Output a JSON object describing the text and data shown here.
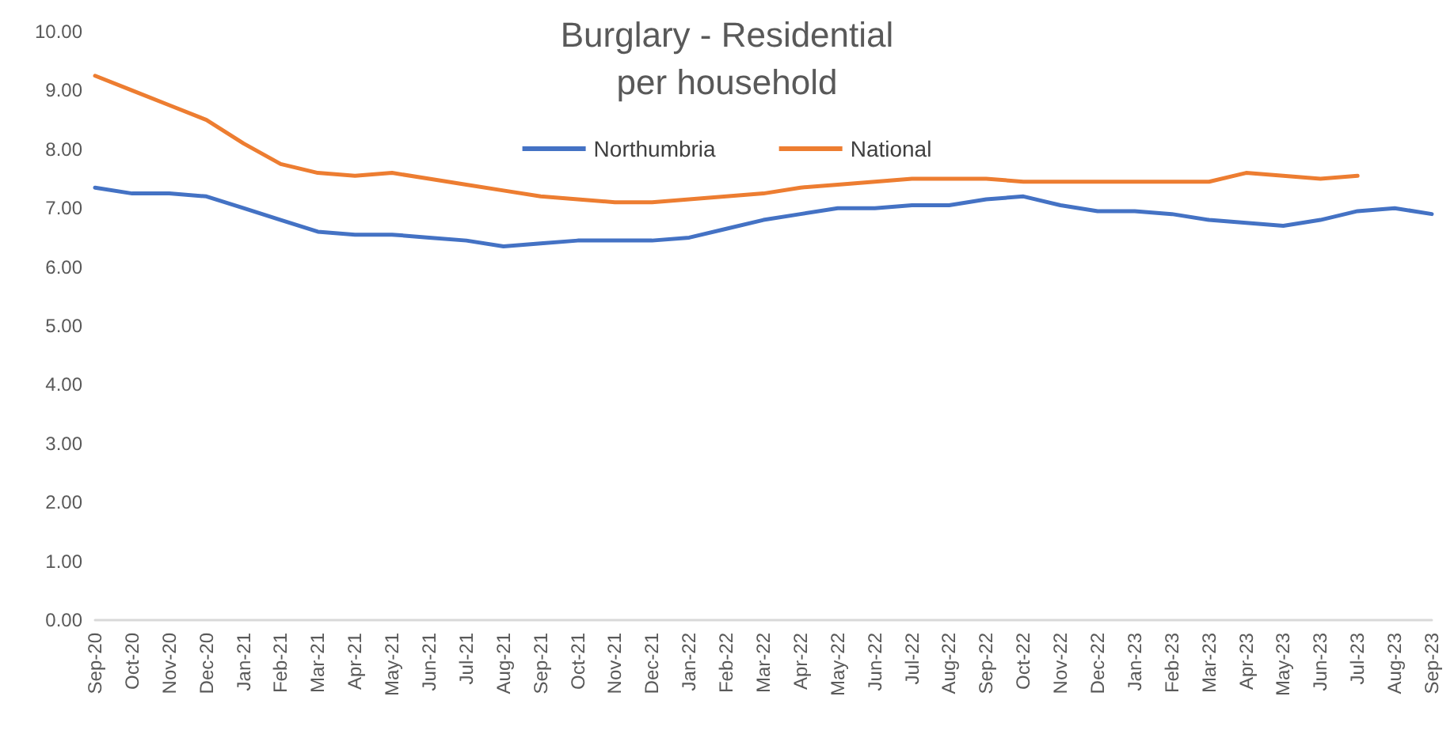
{
  "chart_data": {
    "type": "line",
    "title": "Burglary - Residential\nper household",
    "categories": [
      "Sep-20",
      "Oct-20",
      "Nov-20",
      "Dec-20",
      "Jan-21",
      "Feb-21",
      "Mar-21",
      "Apr-21",
      "May-21",
      "Jun-21",
      "Jul-21",
      "Aug-21",
      "Sep-21",
      "Oct-21",
      "Nov-21",
      "Dec-21",
      "Jan-22",
      "Feb-22",
      "Mar-22",
      "Apr-22",
      "May-22",
      "Jun-22",
      "Jul-22",
      "Aug-22",
      "Sep-22",
      "Oct-22",
      "Nov-22",
      "Dec-22",
      "Jan-23",
      "Feb-23",
      "Mar-23",
      "Apr-23",
      "May-23",
      "Jun-23",
      "Jul-23",
      "Aug-23",
      "Sep-23"
    ],
    "series": [
      {
        "name": "Northumbria",
        "color": "#4472c4",
        "values": [
          7.35,
          7.25,
          7.25,
          7.2,
          7.0,
          6.8,
          6.6,
          6.55,
          6.55,
          6.5,
          6.45,
          6.35,
          6.4,
          6.45,
          6.45,
          6.45,
          6.5,
          6.65,
          6.8,
          6.9,
          7.0,
          7.0,
          7.05,
          7.05,
          7.15,
          7.2,
          7.05,
          6.95,
          6.95,
          6.9,
          6.8,
          6.75,
          6.7,
          6.8,
          6.95,
          7.0,
          6.9
        ]
      },
      {
        "name": "National",
        "color": "#ed7d31",
        "values": [
          9.25,
          9.0,
          8.75,
          8.5,
          8.1,
          7.75,
          7.6,
          7.55,
          7.6,
          7.5,
          7.4,
          7.3,
          7.2,
          7.15,
          7.1,
          7.1,
          7.15,
          7.2,
          7.25,
          7.35,
          7.4,
          7.45,
          7.5,
          7.5,
          7.5,
          7.45,
          7.45,
          7.45,
          7.45,
          7.45,
          7.45,
          7.6,
          7.55,
          7.5,
          7.55,
          null,
          null
        ]
      }
    ],
    "ylim": [
      0,
      10
    ],
    "yticks": [
      {
        "value": 0,
        "label": "0.00"
      },
      {
        "value": 1,
        "label": "1.00"
      },
      {
        "value": 2,
        "label": "2.00"
      },
      {
        "value": 3,
        "label": "3.00"
      },
      {
        "value": 4,
        "label": "4.00"
      },
      {
        "value": 5,
        "label": "5.00"
      },
      {
        "value": 6,
        "label": "6.00"
      },
      {
        "value": 7,
        "label": "7.00"
      },
      {
        "value": 8,
        "label": "8.00"
      },
      {
        "value": 9,
        "label": "9.00"
      },
      {
        "value": 10,
        "label": "10.00"
      }
    ],
    "grid": false,
    "legend": "top",
    "marker": "none",
    "line_style": "solid"
  }
}
